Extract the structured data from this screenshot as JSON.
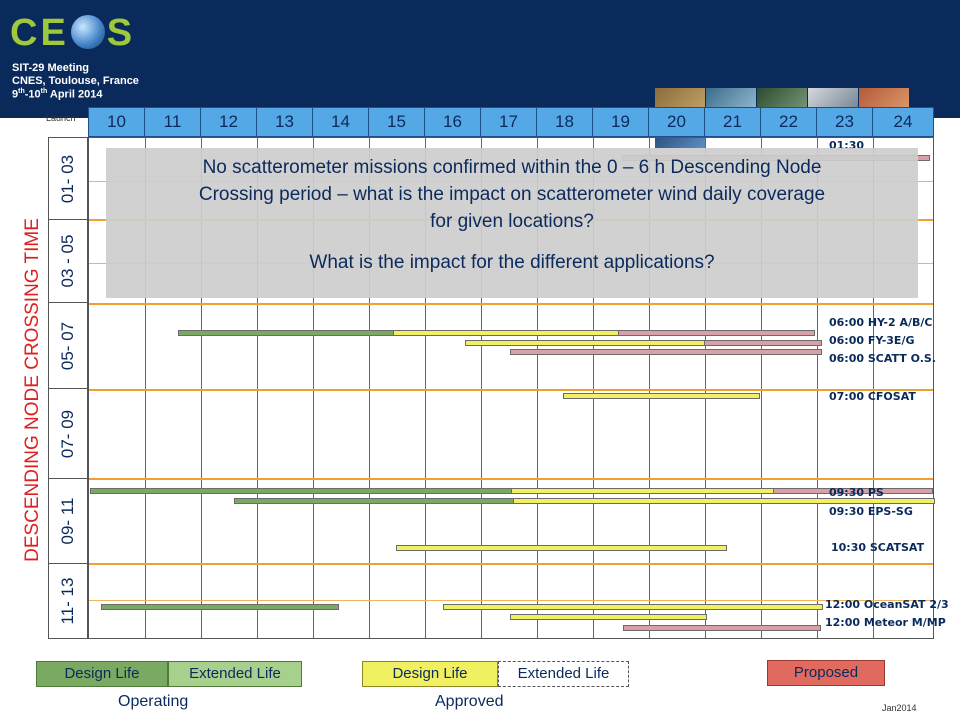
{
  "header": {
    "logo": "CEOS",
    "meeting": "SIT-29 Meeting",
    "location": "CNES, Toulouse, France",
    "dates_day1": "9",
    "dates_sup1": "th",
    "dates_mid": "-10",
    "dates_sup2": "th",
    "dates_tail": " April 2014"
  },
  "launch_label": "Launch",
  "years": [
    "10",
    "11",
    "12",
    "13",
    "14",
    "15",
    "16",
    "17",
    "18",
    "19",
    "20",
    "21",
    "22",
    "23",
    "24"
  ],
  "y_title": "DESCENDING NODE CROSSING TIME",
  "rows": [
    "01- 03",
    "03 - 05",
    "05- 07",
    "07- 09",
    "09- 11",
    "11- 13"
  ],
  "message": {
    "line1": "No scatterometer missions confirmed within the 0 – 6 h Descending Node",
    "line2": "Crossing period – what is the impact on scatterometer wind daily coverage",
    "line3": "for given locations?",
    "line4": "What is the impact for the different applications?"
  },
  "missions": {
    "m1": "01:30",
    "m2": "06:00 HY-2 A/B/C",
    "m3": "06:00  FY-3E/G",
    "m4": "06:00 SCATT O.S.",
    "m5": "07:00 CFOSAT",
    "m6": "09:30 PS",
    "m7": "09:30 EPS-SG",
    "m8": "10:30 SCATSAT",
    "m9": "12:00 OceanSAT 2/3",
    "m10": "12:00 Meteor M/MP"
  },
  "legend": {
    "op_design": "Design Life",
    "op_extended": "Extended Life",
    "op_caption": "Operating",
    "ap_design": "Design Life",
    "ap_extended": "Extended Life",
    "ap_caption": "Approved",
    "proposed": "Proposed"
  },
  "footer_date": "Jan2014",
  "colors": {
    "header_bg": "#0b2a5c",
    "year_cell": "#55a8e6",
    "operating_design": "#7aaa62",
    "operating_extended": "#a8d08d",
    "approved_design": "#f0f060",
    "proposed": "#e06a5f",
    "title_red": "#e02020"
  }
}
